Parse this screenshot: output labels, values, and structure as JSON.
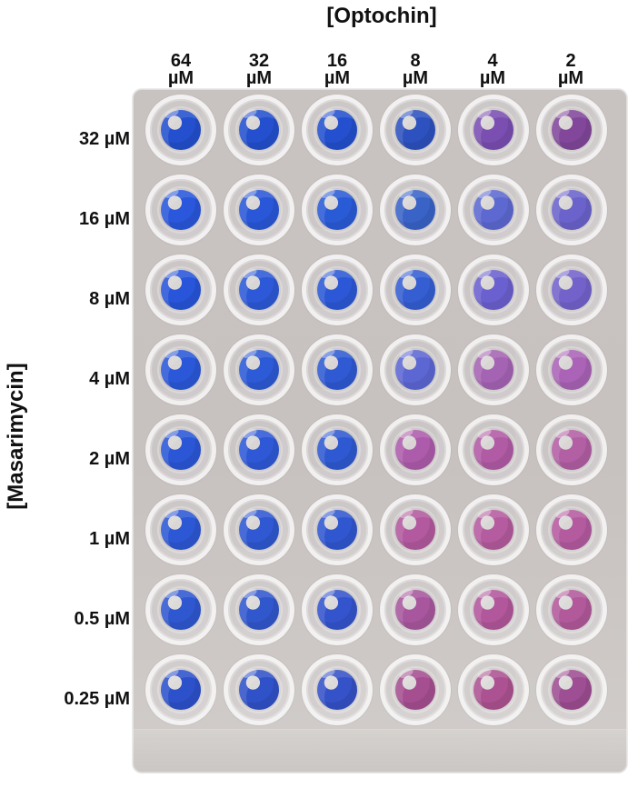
{
  "labels": {
    "x_title": "[Optochin]",
    "y_title": "[Masarimycin]"
  },
  "optochin": [
    {
      "number": "64",
      "unit": "µM"
    },
    {
      "number": "32",
      "unit": "µM"
    },
    {
      "number": "16",
      "unit": "µM"
    },
    {
      "number": "8",
      "unit": "µM"
    },
    {
      "number": "4",
      "unit": "µM"
    },
    {
      "number": "2",
      "unit": "µM"
    }
  ],
  "masarimycin": [
    "32 µM",
    "16 µM",
    "8 µM",
    "4 µM",
    "2 µM",
    "1 µM",
    "0.5 µM",
    "0.25 µM"
  ],
  "palette": {
    "blue": "#2f56d6",
    "violet": "#6f5cc9",
    "purple": "#a567b0",
    "magenta": "#b55a9b"
  },
  "well_colors": [
    [
      "#2450cf",
      "#2450cf",
      "#2450cf",
      "#2d52bf",
      "#7a4fb1",
      "#82479b"
    ],
    [
      "#2a57dc",
      "#2957d8",
      "#2a5bd6",
      "#3a63c8",
      "#5d69d1",
      "#6b63cb"
    ],
    [
      "#2855da",
      "#2d59d8",
      "#2c58d7",
      "#345ed2",
      "#6b60cf",
      "#7462cb"
    ],
    [
      "#2b58d8",
      "#2d5ad6",
      "#2f5ad3",
      "#5d67d3",
      "#a563b3",
      "#aa63b6"
    ],
    [
      "#2b57d7",
      "#2e58d6",
      "#2f59d2",
      "#ad5cab",
      "#b15ba5",
      "#b25fa4"
    ],
    [
      "#2d58d5",
      "#2f58d2",
      "#3057d0",
      "#b2599f",
      "#b55b9f",
      "#b45ba0"
    ],
    [
      "#2f57d0",
      "#3157cd",
      "#3354cd",
      "#a8579e",
      "#b2579c",
      "#b1599b"
    ],
    [
      "#2d51cb",
      "#3052c9",
      "#3552c8",
      "#a54f91",
      "#ac5292",
      "#9e4e92"
    ]
  ]
}
